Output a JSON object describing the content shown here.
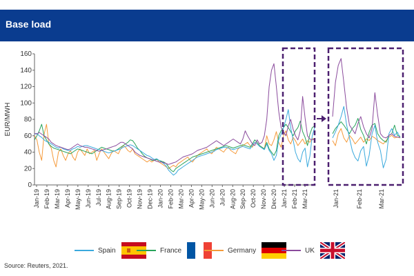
{
  "header": {
    "title": "Base load"
  },
  "source": "Source: Reuters, 2021.",
  "colors": {
    "header": "#0a3c8f",
    "Spain": "#3aa9dd",
    "France": "#27a35a",
    "Germany": "#f59a3a",
    "UK": "#8a4a9c",
    "highlight": "#4b1f6f"
  },
  "legend": [
    {
      "name": "Spain",
      "flag": "spain-flag-icon"
    },
    {
      "name": "France",
      "flag": "france-flag-icon"
    },
    {
      "name": "Germany",
      "flag": "germany-flag-icon"
    },
    {
      "name": "UK",
      "flag": "uk-flag-icon"
    }
  ],
  "chart_data": [
    {
      "type": "line",
      "title": "",
      "xlabel": "",
      "ylabel": "EUR/MWH",
      "ylim": [
        0,
        160
      ],
      "yticks": [
        0,
        20,
        40,
        60,
        80,
        100,
        120,
        140,
        160
      ],
      "grid": false,
      "xticks": [
        "Jan-19",
        "Feb-19",
        "Mar-19",
        "Apr-19",
        "May-19",
        "Jun-19",
        "Jul-19",
        "Aug-19",
        "Sep-19",
        "Oct-19",
        "Nov-19",
        "Dec-19",
        "Jan-20",
        "Feb-20",
        "Mar-20",
        "Apr-20",
        "May-20",
        "Jun-20",
        "Jul-20",
        "Aug-20",
        "Sep-20",
        "Oct-20",
        "Nov-20",
        "Dec-20",
        "Jan-21",
        "Feb-21",
        "Mar-21"
      ],
      "x": [
        0,
        1,
        2,
        3,
        4,
        5,
        6,
        7,
        8,
        9,
        10,
        11,
        12,
        13,
        14,
        15,
        16,
        17,
        18,
        19,
        20,
        21,
        22,
        23,
        24,
        25,
        26,
        27,
        28,
        29,
        30,
        31,
        32,
        33,
        34,
        35,
        36,
        37,
        38,
        39,
        40,
        41,
        42,
        43,
        44,
        45,
        46,
        47,
        48,
        49,
        50,
        51,
        52,
        53,
        54,
        55,
        56,
        57,
        58,
        59,
        60,
        61,
        62,
        63,
        64,
        65,
        66,
        67,
        68,
        69,
        70,
        71,
        72,
        73,
        74,
        75,
        76,
        77,
        78,
        79,
        80,
        81,
        82,
        83,
        84,
        85,
        86,
        87,
        88,
        89,
        90,
        91,
        92,
        93,
        94,
        95,
        96,
        97,
        98,
        99,
        100,
        101,
        102,
        103,
        104,
        105,
        106,
        107,
        108,
        109,
        110,
        111,
        112,
        113,
        114,
        115,
        116,
        117
      ],
      "series": [
        {
          "name": "Spain",
          "values": [
            62,
            63,
            60,
            58,
            55,
            53,
            52,
            50,
            48,
            46,
            45,
            46,
            44,
            43,
            42,
            42,
            44,
            45,
            47,
            46,
            47,
            48,
            48,
            47,
            46,
            45,
            44,
            43,
            42,
            41,
            40,
            39,
            40,
            41,
            42,
            43,
            44,
            46,
            47,
            48,
            49,
            48,
            46,
            44,
            42,
            40,
            38,
            36,
            35,
            33,
            31,
            32,
            30,
            28,
            26,
            23,
            18,
            15,
            12,
            14,
            18,
            20,
            22,
            24,
            26,
            28,
            30,
            32,
            34,
            35,
            36,
            37,
            38,
            39,
            40,
            41,
            43,
            44,
            45,
            46,
            46,
            45,
            44,
            43,
            44,
            45,
            46,
            47,
            46,
            45,
            44,
            48,
            52,
            50,
            47,
            45,
            43,
            50,
            42,
            38,
            30,
            36,
            55,
            62,
            70,
            80,
            92,
            70,
            55,
            40,
            32,
            28,
            40,
            45,
            22,
            35,
            60,
            70
          ]
        },
        {
          "name": "France",
          "values": [
            55,
            60,
            66,
            74,
            60,
            55,
            50,
            47,
            45,
            44,
            43,
            42,
            41,
            40,
            39,
            38,
            40,
            42,
            44,
            43,
            42,
            41,
            40,
            39,
            38,
            40,
            42,
            44,
            46,
            45,
            44,
            43,
            42,
            41,
            42,
            44,
            46,
            48,
            50,
            52,
            55,
            54,
            50,
            45,
            42,
            38,
            35,
            33,
            32,
            30,
            30,
            31,
            30,
            29,
            28,
            26,
            22,
            18,
            16,
            20,
            22,
            24,
            26,
            28,
            30,
            32,
            34,
            35,
            36,
            37,
            38,
            39,
            40,
            41,
            42,
            43,
            44,
            45,
            46,
            47,
            48,
            47,
            46,
            45,
            46,
            47,
            48,
            49,
            48,
            47,
            46,
            50,
            55,
            52,
            48,
            46,
            44,
            52,
            44,
            40,
            36,
            42,
            60,
            66,
            70,
            74,
            70,
            65,
            60,
            66,
            70,
            78,
            65,
            58,
            48,
            62,
            70,
            72
          ]
        },
        {
          "name": "Germany",
          "values": [
            60,
            55,
            40,
            30,
            62,
            74,
            50,
            45,
            30,
            22,
            40,
            44,
            36,
            30,
            38,
            42,
            34,
            30,
            40,
            44,
            40,
            36,
            44,
            38,
            40,
            42,
            30,
            38,
            44,
            40,
            36,
            32,
            38,
            42,
            40,
            38,
            44,
            48,
            46,
            42,
            40,
            44,
            38,
            36,
            34,
            32,
            30,
            28,
            30,
            28,
            30,
            32,
            28,
            26,
            24,
            22,
            20,
            22,
            24,
            22,
            26,
            28,
            30,
            32,
            34,
            30,
            28,
            32,
            36,
            38,
            40,
            42,
            44,
            40,
            38,
            42,
            46,
            44,
            42,
            40,
            44,
            46,
            42,
            40,
            38,
            44,
            46,
            48,
            50,
            52,
            48,
            46,
            52,
            50,
            48,
            46,
            44,
            60,
            50,
            48,
            55,
            65,
            52,
            46,
            60,
            66,
            55,
            50,
            58,
            54,
            48,
            52,
            56,
            50,
            54,
            52,
            57,
            55
          ]
        },
        {
          "name": "UK",
          "values": [
            63,
            62,
            64,
            62,
            60,
            58,
            56,
            52,
            50,
            48,
            47,
            46,
            45,
            44,
            43,
            44,
            46,
            48,
            50,
            48,
            47,
            46,
            46,
            45,
            44,
            43,
            42,
            41,
            42,
            43,
            44,
            45,
            46,
            47,
            48,
            50,
            52,
            52,
            50,
            48,
            46,
            44,
            40,
            38,
            36,
            35,
            34,
            33,
            32,
            31,
            30,
            29,
            28,
            28,
            27,
            26,
            25,
            26,
            27,
            28,
            30,
            32,
            34,
            35,
            36,
            37,
            38,
            40,
            42,
            43,
            44,
            45,
            46,
            48,
            50,
            52,
            54,
            52,
            50,
            48,
            50,
            52,
            54,
            56,
            54,
            52,
            50,
            56,
            66,
            60,
            55,
            50,
            48,
            55,
            50,
            52,
            60,
            80,
            120,
            140,
            148,
            120,
            90,
            70,
            65,
            60,
            72,
            80,
            68,
            60,
            55,
            66,
            108,
            82,
            60,
            56,
            55,
            56
          ]
        }
      ]
    },
    {
      "type": "line",
      "title": "",
      "ylim": [
        0,
        160
      ],
      "grid": false,
      "xticks": [
        "Jan-21",
        "Feb-21",
        "Mar-21"
      ],
      "x": [
        0,
        1,
        2,
        3,
        4,
        5,
        6,
        7,
        8,
        9,
        10,
        11,
        12,
        13,
        14,
        15,
        16,
        17,
        18,
        19,
        20,
        21,
        22,
        23,
        24
      ],
      "series": [
        {
          "name": "Spain",
          "values": [
            55,
            62,
            70,
            80,
            92,
            70,
            55,
            40,
            32,
            28,
            40,
            45,
            22,
            35,
            60,
            70,
            50,
            40,
            20,
            30,
            60,
            66,
            58,
            62,
            55
          ]
        },
        {
          "name": "France",
          "values": [
            60,
            66,
            70,
            74,
            70,
            65,
            60,
            66,
            70,
            78,
            65,
            58,
            48,
            62,
            70,
            72,
            60,
            55,
            52,
            50,
            58,
            60,
            70,
            58,
            57
          ]
        },
        {
          "name": "Germany",
          "values": [
            52,
            46,
            60,
            66,
            55,
            50,
            58,
            54,
            48,
            52,
            56,
            50,
            54,
            52,
            57,
            55,
            52,
            50,
            48,
            52,
            56,
            58,
            55,
            56,
            55
          ]
        },
        {
          "name": "UK",
          "values": [
            80,
            120,
            140,
            148,
            120,
            90,
            70,
            65,
            60,
            72,
            80,
            68,
            60,
            55,
            66,
            108,
            82,
            60,
            56,
            55,
            58,
            60,
            57,
            56,
            56
          ]
        }
      ]
    }
  ]
}
